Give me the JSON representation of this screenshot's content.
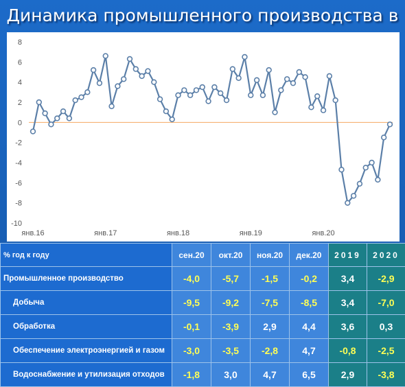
{
  "title": "Динамика промышленного производства в РФ",
  "chart_data": {
    "type": "line",
    "title": "",
    "xlabel": "",
    "ylabel": "",
    "ylim": [
      -10,
      8
    ],
    "yticks": [
      8,
      6,
      4,
      2,
      0,
      -2,
      -4,
      -6,
      -8,
      -10
    ],
    "xtick_labels": [
      "янв.16",
      "янв.17",
      "янв.18",
      "янв.19",
      "янв.20"
    ],
    "xtick_index": [
      0,
      12,
      24,
      36,
      48
    ],
    "zero_line": true,
    "grid": false,
    "series": [
      {
        "values": [
          -0.9,
          2.0,
          0.9,
          -0.2,
          0.4,
          1.1,
          0.4,
          2.2,
          2.5,
          3.0,
          5.2,
          3.9,
          6.6,
          1.6,
          3.6,
          4.3,
          6.3,
          5.3,
          4.6,
          5.1,
          4.0,
          2.3,
          1.1,
          0.3,
          2.7,
          3.2,
          2.7,
          3.2,
          3.5,
          2.1,
          3.5,
          2.9,
          2.2,
          5.3,
          4.4,
          6.5,
          2.7,
          4.2,
          2.7,
          5.2,
          1.0,
          3.2,
          4.3,
          3.9,
          5.0,
          4.5,
          1.5,
          2.6,
          1.2,
          4.6,
          2.2,
          -4.7,
          -8.0,
          -7.3,
          -6.1,
          -4.5,
          -4.0,
          -5.7,
          -1.5,
          -0.2
        ]
      }
    ],
    "colors": {
      "line": "#5b7fa8",
      "marker_fill": "#ffffff",
      "zero_line": "#f4a860"
    }
  },
  "table": {
    "headers": [
      "% год к году",
      "сен.20",
      "окт.20",
      "ноя.20",
      "дек.20",
      "2019",
      "2020"
    ],
    "rows": [
      {
        "label": "Промышленное производство",
        "values": [
          "-4,0",
          "-5,7",
          "-1,5",
          "-0,2",
          "3,4",
          "-2,9"
        ]
      },
      {
        "label": "Добыча",
        "values": [
          "-9,5",
          "-9,2",
          "-7,5",
          "-8,5",
          "3,4",
          "-7,0"
        ]
      },
      {
        "label": "Обработка",
        "values": [
          "-0,1",
          "-3,9",
          "2,9",
          "4,4",
          "3,6",
          "0,3"
        ]
      },
      {
        "label": "Обеспечение электроэнергией и газом",
        "values": [
          "-3,0",
          "-3,5",
          "-2,8",
          "4,7",
          "-0,8",
          "-2,5"
        ]
      },
      {
        "label": "Водоснабжение и утилизация отходов",
        "values": [
          "-1,8",
          "3,0",
          "4,7",
          "6,5",
          "2,9",
          "-3,8"
        ]
      }
    ]
  }
}
